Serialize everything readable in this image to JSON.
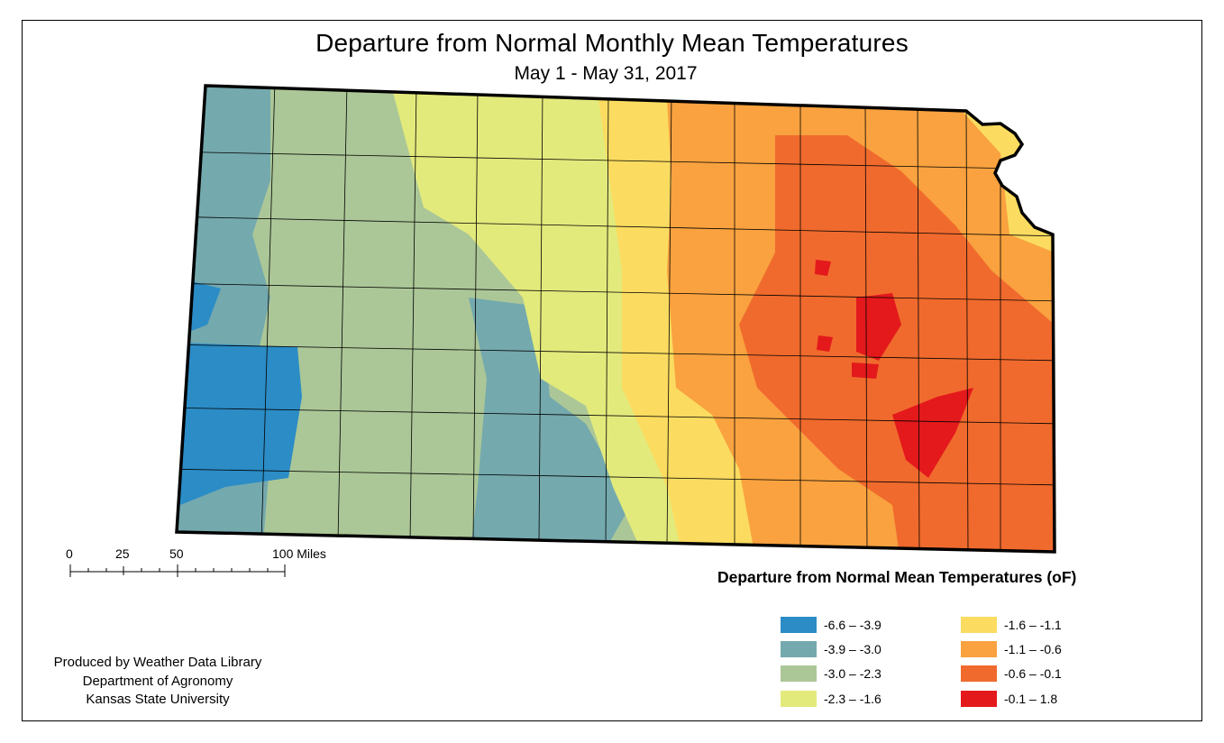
{
  "title": "Departure from Normal Monthly Mean Temperatures",
  "subtitle": "May 1 - May 31, 2017",
  "scale_bar": {
    "labels": [
      "0",
      "25",
      "50",
      "100 Miles"
    ]
  },
  "legend": {
    "title": "Departure from Normal Mean Temperatures (oF)",
    "items": [
      {
        "range": "-6.6 – -3.9",
        "color": "#2b8cc6"
      },
      {
        "range": "-3.9 – -3.0",
        "color": "#74a9ae"
      },
      {
        "range": "-3.0 – -2.3",
        "color": "#abc797"
      },
      {
        "range": "-2.3 – -1.6",
        "color": "#e3ea7c"
      },
      {
        "range": "-1.6 – -1.1",
        "color": "#fbdc60"
      },
      {
        "range": "-1.1 – -0.6",
        "color": "#f9a23f"
      },
      {
        "range": "-0.6 – -0.1",
        "color": "#f06a2d"
      },
      {
        "range": "-0.1 – 1.8",
        "color": "#e3191c"
      }
    ]
  },
  "credits": [
    "Produced by Weather Data Library",
    "Department of Agronomy",
    "Kansas State University"
  ]
}
